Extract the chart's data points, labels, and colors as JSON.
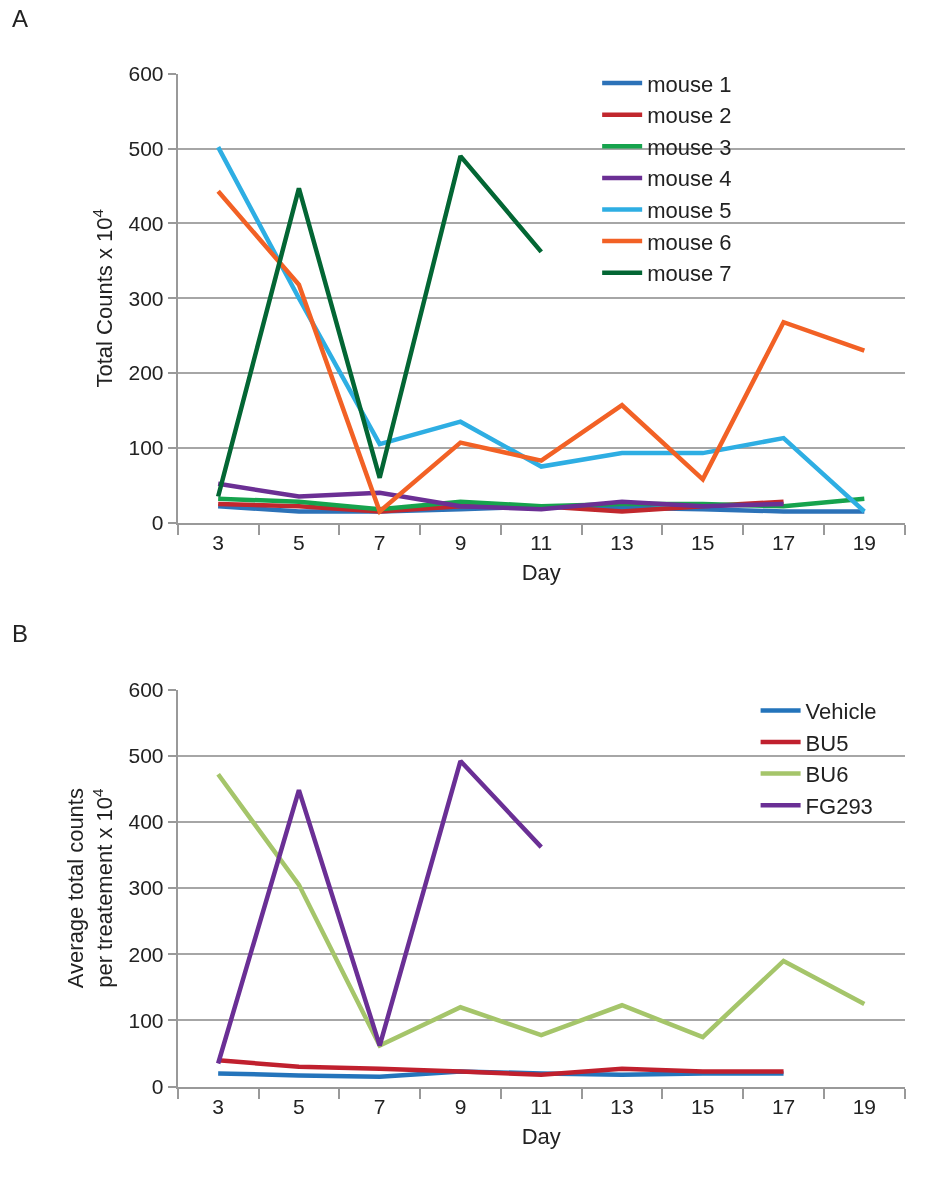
{
  "chart_data": [
    {
      "type": "line",
      "annotations": [
        "A"
      ],
      "xlabel": "Day",
      "ylabel": "Total Counts x 10$^{4}$",
      "categories": [
        "3",
        "5",
        "7",
        "9",
        "11",
        "13",
        "15",
        "17",
        "19"
      ],
      "ylim": [
        0,
        600
      ],
      "yticks": [
        0,
        100,
        200,
        300,
        400,
        500,
        600
      ],
      "grid": "y",
      "legend": "top right",
      "marker": "none",
      "line_style": "solid",
      "series": [
        {
          "name": "mouse 1",
          "color": "#2c72b8",
          "values": [
            22,
            15,
            15,
            18,
            22,
            20,
            18,
            15,
            15
          ]
        },
        {
          "name": "mouse 2",
          "color": "#c1272d",
          "values": [
            25,
            22,
            15,
            22,
            22,
            15,
            22,
            28,
            null
          ]
        },
        {
          "name": "mouse 3",
          "color": "#16a34d",
          "values": [
            32,
            28,
            18,
            28,
            22,
            25,
            25,
            22,
            32
          ]
        },
        {
          "name": "mouse 4",
          "color": "#6b2f94",
          "values": [
            52,
            35,
            40,
            22,
            18,
            28,
            22,
            25,
            null
          ]
        },
        {
          "name": "mouse 5",
          "color": "#2eaee3",
          "values": [
            502,
            300,
            105,
            135,
            75,
            93,
            93,
            113,
            15
          ]
        },
        {
          "name": "mouse 6",
          "color": "#f26125",
          "values": [
            443,
            318,
            15,
            107,
            83,
            157,
            58,
            268,
            230
          ]
        },
        {
          "name": "mouse 7",
          "color": "#036634",
          "values": [
            35,
            447,
            60,
            490,
            362,
            null,
            null,
            null,
            null
          ]
        }
      ]
    },
    {
      "type": "line",
      "annotations": [
        "B"
      ],
      "xlabel": "Day",
      "ylabel": "Average total counts\nper treatement x 10$^{4}$",
      "categories": [
        "3",
        "5",
        "7",
        "9",
        "11",
        "13",
        "15",
        "17",
        "19"
      ],
      "ylim": [
        0,
        600
      ],
      "yticks": [
        0,
        100,
        200,
        300,
        400,
        500,
        600
      ],
      "grid": "y",
      "legend": "top right",
      "marker": "none",
      "line_style": "solid",
      "series": [
        {
          "name": "Vehicle",
          "color": "#2474bb",
          "values": [
            20,
            17,
            15,
            23,
            20,
            18,
            20,
            20,
            null
          ]
        },
        {
          "name": "BU5",
          "color": "#c0202e",
          "values": [
            40,
            30,
            27,
            23,
            18,
            27,
            23,
            23,
            null
          ]
        },
        {
          "name": "BU6",
          "color": "#a5c56a",
          "values": [
            472,
            305,
            62,
            120,
            78,
            123,
            75,
            190,
            125
          ]
        },
        {
          "name": "FG293",
          "color": "#6a2f95",
          "values": [
            35,
            448,
            62,
            492,
            362,
            null,
            null,
            null,
            null
          ]
        }
      ]
    }
  ]
}
